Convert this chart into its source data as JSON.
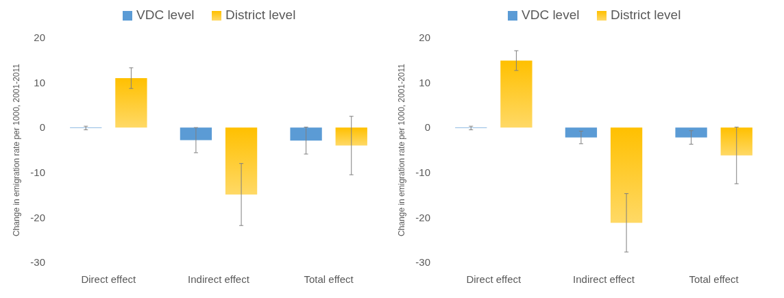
{
  "chart_data": [
    {
      "type": "bar",
      "ylabel": "Change in emigration rate per 1000, 2001-2011",
      "categories": [
        "Direct effect",
        "Indirect effect",
        "Total effect"
      ],
      "ylim": [
        -30,
        20
      ],
      "yticks": [
        -30,
        -20,
        -10,
        0,
        10,
        20
      ],
      "grid": false,
      "legend": "top",
      "series": [
        {
          "name": "VDC level",
          "color": "#5b9bd5",
          "values": [
            -0.1,
            -2.8,
            -2.9
          ],
          "errors": [
            0.4,
            2.8,
            3.0
          ]
        },
        {
          "name": "District level",
          "color": "#ffc000",
          "values": [
            11.0,
            -14.9,
            -4.0
          ],
          "errors": [
            2.3,
            6.9,
            6.5
          ]
        }
      ]
    },
    {
      "type": "bar",
      "ylabel": "Change in emigration rate per 1000, 2001-2011",
      "categories": [
        "Direct effect",
        "Indirect effect",
        "Total effect"
      ],
      "ylim": [
        -30,
        20
      ],
      "yticks": [
        -30,
        -20,
        -10,
        0,
        10,
        20
      ],
      "grid": false,
      "legend": "top",
      "series": [
        {
          "name": "VDC level",
          "color": "#5b9bd5",
          "values": [
            -0.1,
            -2.2,
            -2.2
          ],
          "errors": [
            0.4,
            1.4,
            1.5
          ]
        },
        {
          "name": "District level",
          "color": "#ffc000",
          "values": [
            14.9,
            -21.2,
            -6.2
          ],
          "errors": [
            2.2,
            6.5,
            6.3
          ]
        }
      ]
    }
  ]
}
